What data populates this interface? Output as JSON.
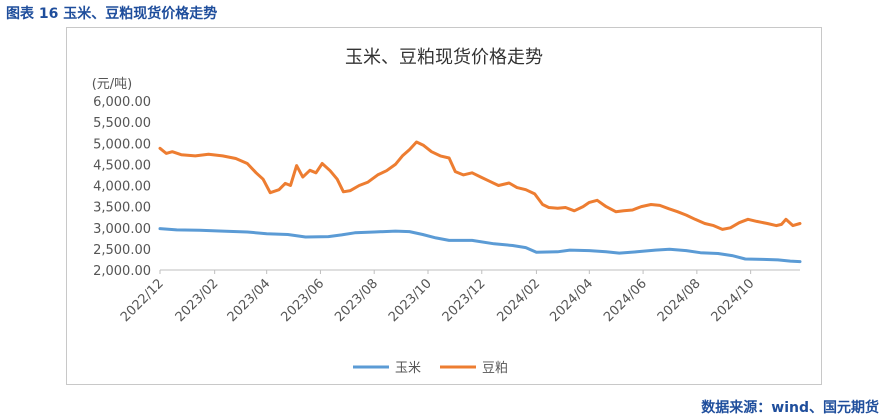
{
  "figure_title": "图表 16  玉米、豆粕现货价格走势",
  "source": "数据来源：wind、国元期货",
  "colors": {
    "corn": "#5b9bd5",
    "soymeal": "#ed7d31",
    "title": "#1f4e9c"
  },
  "chart_data": {
    "type": "line",
    "title": "玉米、豆粕现货价格走势",
    "ylabel": "(元/吨)",
    "ylim": [
      2000,
      6000
    ],
    "yticks": [
      "2,000.00",
      "2,500.00",
      "3,000.00",
      "3,500.00",
      "4,000.00",
      "4,500.00",
      "5,000.00",
      "5,500.00",
      "6,000.00"
    ],
    "xticks": [
      "2022/12",
      "2023/02",
      "2023/04",
      "2023/06",
      "2023/08",
      "2023/10",
      "2023/12",
      "2024/02",
      "2024/04",
      "2024/06",
      "2024/08",
      "2024/10"
    ],
    "xlim": [
      "2022-12-01",
      "2024-11-26"
    ],
    "legend": "bottom",
    "grid": false,
    "series": [
      {
        "name": "玉米",
        "color": "#5b9bd5",
        "points": [
          [
            "2022-12-01",
            2980
          ],
          [
            "2022-12-20",
            2950
          ],
          [
            "2023-01-15",
            2940
          ],
          [
            "2023-02-10",
            2920
          ],
          [
            "2023-03-10",
            2900
          ],
          [
            "2023-04-01",
            2860
          ],
          [
            "2023-04-25",
            2840
          ],
          [
            "2023-05-15",
            2780
          ],
          [
            "2023-06-10",
            2790
          ],
          [
            "2023-06-25",
            2830
          ],
          [
            "2023-07-10",
            2880
          ],
          [
            "2023-08-01",
            2900
          ],
          [
            "2023-08-25",
            2920
          ],
          [
            "2023-09-10",
            2910
          ],
          [
            "2023-09-25",
            2840
          ],
          [
            "2023-10-10",
            2760
          ],
          [
            "2023-10-25",
            2700
          ],
          [
            "2023-11-20",
            2700
          ],
          [
            "2023-12-15",
            2620
          ],
          [
            "2024-01-05",
            2580
          ],
          [
            "2024-01-20",
            2530
          ],
          [
            "2024-02-01",
            2420
          ],
          [
            "2024-02-25",
            2430
          ],
          [
            "2024-03-10",
            2470
          ],
          [
            "2024-04-01",
            2460
          ],
          [
            "2024-04-20",
            2430
          ],
          [
            "2024-05-05",
            2400
          ],
          [
            "2024-05-25",
            2430
          ],
          [
            "2024-06-15",
            2470
          ],
          [
            "2024-07-01",
            2490
          ],
          [
            "2024-07-20",
            2460
          ],
          [
            "2024-08-05",
            2410
          ],
          [
            "2024-08-25",
            2390
          ],
          [
            "2024-09-10",
            2340
          ],
          [
            "2024-09-25",
            2260
          ],
          [
            "2024-10-15",
            2250
          ],
          [
            "2024-11-01",
            2240
          ],
          [
            "2024-11-15",
            2210
          ],
          [
            "2024-11-26",
            2200
          ]
        ]
      },
      {
        "name": "豆粕",
        "color": "#ed7d31",
        "points": [
          [
            "2022-12-01",
            4880
          ],
          [
            "2022-12-08",
            4760
          ],
          [
            "2022-12-15",
            4800
          ],
          [
            "2022-12-25",
            4730
          ],
          [
            "2023-01-10",
            4700
          ],
          [
            "2023-01-25",
            4740
          ],
          [
            "2023-02-10",
            4700
          ],
          [
            "2023-02-25",
            4640
          ],
          [
            "2023-03-10",
            4520
          ],
          [
            "2023-03-20",
            4300
          ],
          [
            "2023-03-28",
            4150
          ],
          [
            "2023-04-05",
            3830
          ],
          [
            "2023-04-15",
            3900
          ],
          [
            "2023-04-22",
            4050
          ],
          [
            "2023-04-28",
            4000
          ],
          [
            "2023-05-05",
            4470
          ],
          [
            "2023-05-12",
            4200
          ],
          [
            "2023-05-20",
            4360
          ],
          [
            "2023-05-27",
            4300
          ],
          [
            "2023-06-03",
            4520
          ],
          [
            "2023-06-12",
            4350
          ],
          [
            "2023-06-20",
            4150
          ],
          [
            "2023-06-27",
            3850
          ],
          [
            "2023-07-05",
            3880
          ],
          [
            "2023-07-15",
            4000
          ],
          [
            "2023-07-25",
            4080
          ],
          [
            "2023-08-05",
            4250
          ],
          [
            "2023-08-15",
            4350
          ],
          [
            "2023-08-25",
            4500
          ],
          [
            "2023-09-02",
            4700
          ],
          [
            "2023-09-10",
            4850
          ],
          [
            "2023-09-18",
            5030
          ],
          [
            "2023-09-26",
            4950
          ],
          [
            "2023-10-05",
            4800
          ],
          [
            "2023-10-15",
            4700
          ],
          [
            "2023-10-25",
            4650
          ],
          [
            "2023-11-01",
            4330
          ],
          [
            "2023-11-10",
            4250
          ],
          [
            "2023-11-20",
            4300
          ],
          [
            "2023-11-30",
            4200
          ],
          [
            "2023-12-10",
            4100
          ],
          [
            "2023-12-20",
            4000
          ],
          [
            "2024-01-01",
            4060
          ],
          [
            "2024-01-10",
            3950
          ],
          [
            "2024-01-20",
            3900
          ],
          [
            "2024-01-30",
            3800
          ],
          [
            "2024-02-08",
            3550
          ],
          [
            "2024-02-15",
            3480
          ],
          [
            "2024-02-25",
            3460
          ],
          [
            "2024-03-05",
            3480
          ],
          [
            "2024-03-15",
            3400
          ],
          [
            "2024-03-25",
            3500
          ],
          [
            "2024-04-01",
            3600
          ],
          [
            "2024-04-10",
            3650
          ],
          [
            "2024-04-20",
            3500
          ],
          [
            "2024-05-01",
            3380
          ],
          [
            "2024-05-10",
            3400
          ],
          [
            "2024-05-20",
            3420
          ],
          [
            "2024-05-30",
            3500
          ],
          [
            "2024-06-10",
            3550
          ],
          [
            "2024-06-20",
            3530
          ],
          [
            "2024-06-30",
            3450
          ],
          [
            "2024-07-10",
            3380
          ],
          [
            "2024-07-20",
            3300
          ],
          [
            "2024-07-30",
            3200
          ],
          [
            "2024-08-10",
            3100
          ],
          [
            "2024-08-20",
            3050
          ],
          [
            "2024-08-30",
            2960
          ],
          [
            "2024-09-08",
            3000
          ],
          [
            "2024-09-18",
            3120
          ],
          [
            "2024-09-28",
            3200
          ],
          [
            "2024-10-08",
            3150
          ],
          [
            "2024-10-20",
            3100
          ],
          [
            "2024-10-30",
            3050
          ],
          [
            "2024-11-05",
            3080
          ],
          [
            "2024-11-10",
            3200
          ],
          [
            "2024-11-18",
            3050
          ],
          [
            "2024-11-26",
            3100
          ]
        ]
      }
    ]
  }
}
